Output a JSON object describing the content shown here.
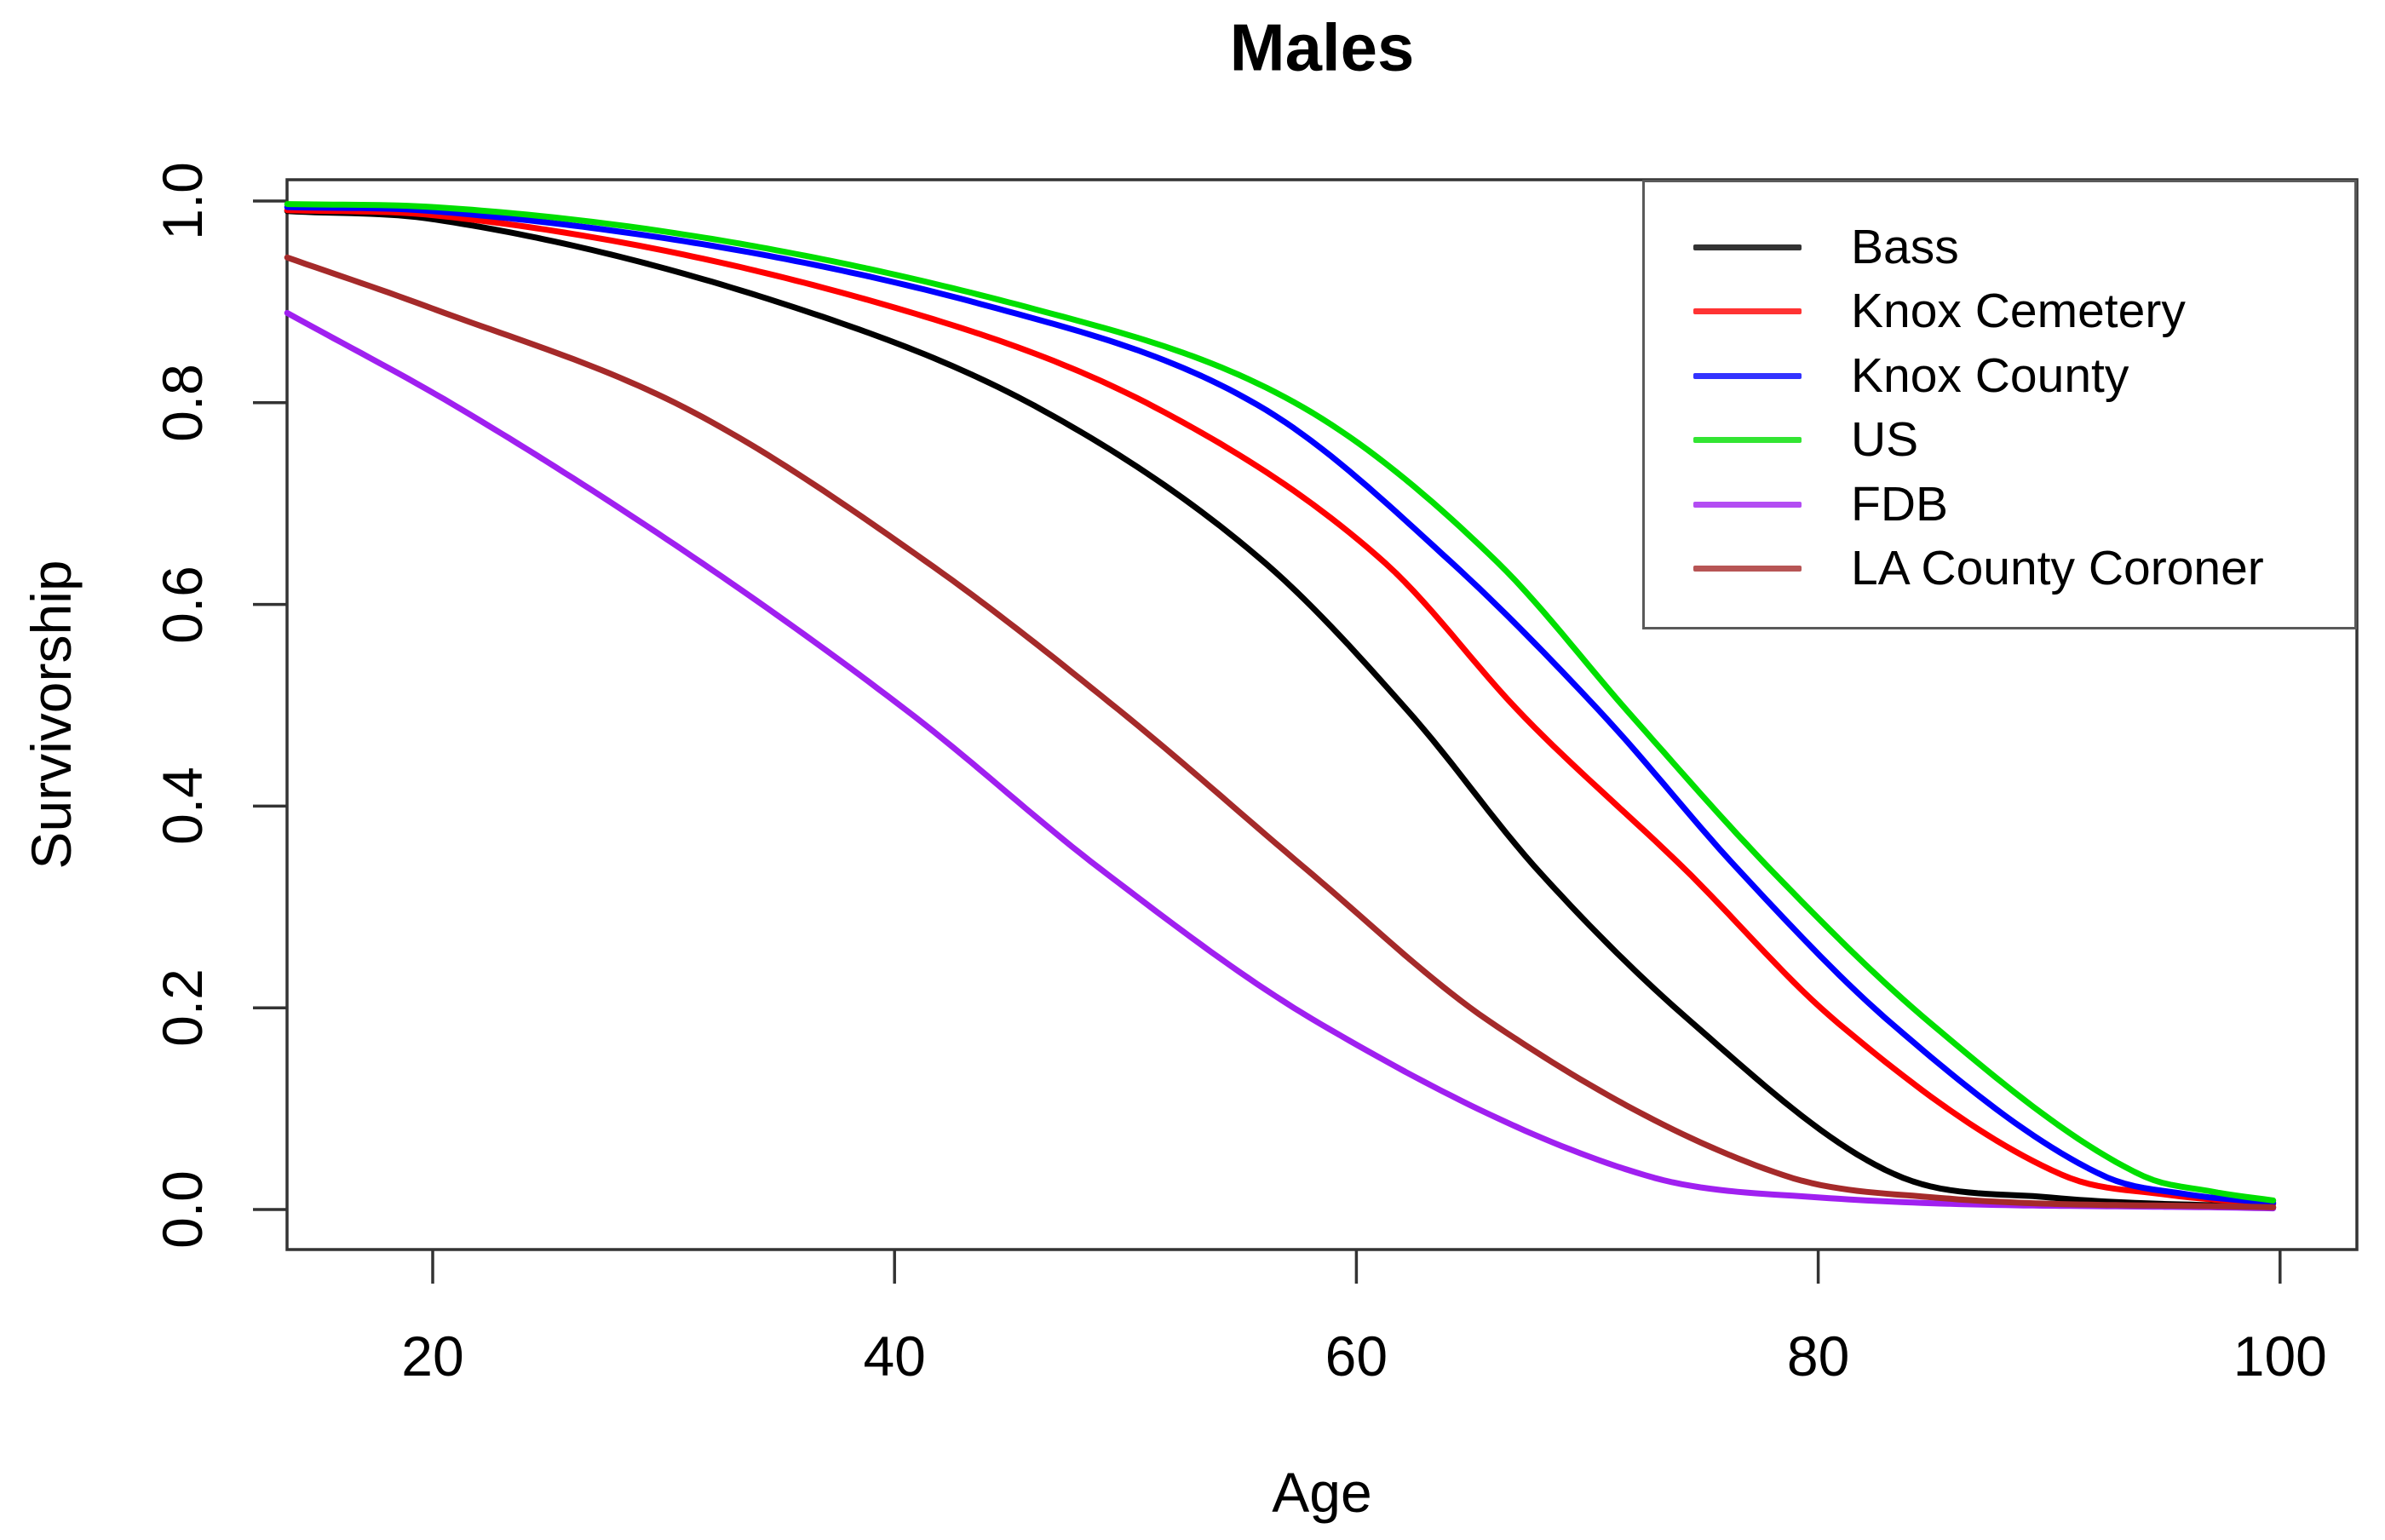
{
  "title": "Males",
  "chart_data": {
    "type": "line",
    "title": "Males",
    "xlabel": "Age",
    "ylabel": "Survivorship",
    "x_range_displayed": [
      13.7,
      103.3
    ],
    "y_range_displayed": [
      -0.04,
      1.02
    ],
    "xticks": [
      20,
      40,
      60,
      80,
      100
    ],
    "ytick_labels": [
      "0.0",
      "0.2",
      "0.4",
      "0.6",
      "0.8",
      "1.0"
    ],
    "yticks": [
      0.0,
      0.2,
      0.4,
      0.6,
      0.8,
      1.0
    ],
    "grid": false,
    "legend": {
      "position": "topright"
    },
    "series": [
      {
        "name": "Bass",
        "color": "#000000",
        "points": [
          [
            13.7,
            0.99
          ],
          [
            20,
            0.982
          ],
          [
            35.6,
            0.895
          ],
          [
            46.3,
            0.794
          ],
          [
            56.0,
            0.642
          ],
          [
            62.4,
            0.49
          ],
          [
            67.8,
            0.338
          ],
          [
            74.5,
            0.186
          ],
          [
            83.4,
            0.034
          ],
          [
            90,
            0.012
          ],
          [
            100,
            0.002
          ]
        ]
      },
      {
        "name": "Knox Cemetery",
        "color": "#FF0000",
        "points": [
          [
            13.7,
            0.991
          ],
          [
            20,
            0.986
          ],
          [
            39.9,
            0.895
          ],
          [
            51.4,
            0.794
          ],
          [
            61.2,
            0.642
          ],
          [
            67.2,
            0.49
          ],
          [
            74.2,
            0.338
          ],
          [
            80.8,
            0.186
          ],
          [
            90.6,
            0.034
          ],
          [
            95,
            0.015
          ],
          [
            100,
            0.005
          ]
        ]
      },
      {
        "name": "Knox County",
        "color": "#0000FF",
        "points": [
          [
            13.7,
            0.994
          ],
          [
            20,
            0.99
          ],
          [
            44.2,
            0.895
          ],
          [
            56.0,
            0.794
          ],
          [
            64.1,
            0.642
          ],
          [
            70.7,
            0.49
          ],
          [
            76.5,
            0.338
          ],
          [
            83.1,
            0.186
          ],
          [
            92.3,
            0.034
          ],
          [
            96,
            0.015
          ],
          [
            100,
            0.006
          ]
        ]
      },
      {
        "name": "US",
        "color": "#00DF00",
        "points": [
          [
            13.7,
            0.997
          ],
          [
            20,
            0.994
          ],
          [
            45.7,
            0.895
          ],
          [
            57.8,
            0.794
          ],
          [
            66.1,
            0.642
          ],
          [
            71.9,
            0.49
          ],
          [
            77.9,
            0.338
          ],
          [
            84.8,
            0.186
          ],
          [
            94.0,
            0.034
          ],
          [
            97,
            0.018
          ],
          [
            100,
            0.008
          ]
        ]
      },
      {
        "name": "FDB",
        "color": "#A020F0",
        "points": [
          [
            13.7,
            0.889
          ],
          [
            21.2,
            0.794
          ],
          [
            31.6,
            0.642
          ],
          [
            40.8,
            0.49
          ],
          [
            48.9,
            0.338
          ],
          [
            58.3,
            0.186
          ],
          [
            72.5,
            0.034
          ],
          [
            80,
            0.012
          ],
          [
            100,
            0.001
          ]
        ]
      },
      {
        "name": "LA County Coroner",
        "color": "#A52A2A",
        "points": [
          [
            13.7,
            0.944
          ],
          [
            19.8,
            0.895
          ],
          [
            31.0,
            0.794
          ],
          [
            41.4,
            0.642
          ],
          [
            50.0,
            0.49
          ],
          [
            57.8,
            0.338
          ],
          [
            65.8,
            0.186
          ],
          [
            78.5,
            0.034
          ],
          [
            85,
            0.012
          ],
          [
            100,
            0.002
          ]
        ]
      }
    ]
  }
}
